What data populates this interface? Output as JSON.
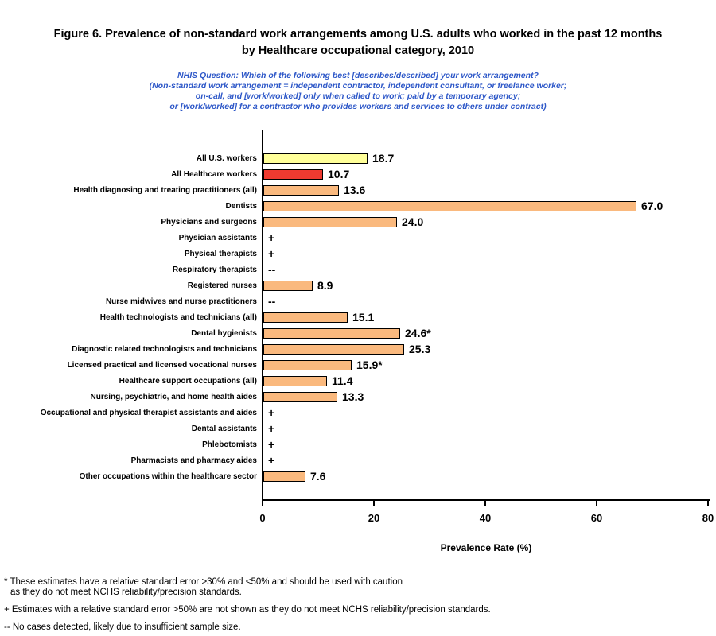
{
  "title": {
    "lines": [
      "Figure 6. Prevalence of non-standard work arrangements among U.S. adults who worked in the past 12 months",
      "by Healthcare occupational category, 2010"
    ]
  },
  "subtitle": {
    "color": "#2E58C8",
    "lines": [
      "NHIS Question: Which of the following best [describes/described] your work arrangement?",
      "(Non-standard work arrangement = independent contractor, independent consultant, or freelance worker;",
      "on-call, and [work/worked] only when called to work; paid by a temporary agency;",
      "or [work/worked] for a contractor who provides workers and services to others under contract)"
    ]
  },
  "chart_data": {
    "type": "bar",
    "orientation": "horizontal",
    "xlabel": "Prevalence Rate (%)",
    "xlim": [
      0,
      80.5
    ],
    "xticks": [
      0,
      20,
      40,
      60,
      80
    ],
    "grid": false,
    "default_bar_color": "#FAB97E",
    "bar_border_color": "#000000",
    "bars": [
      {
        "category": "All U.S. workers",
        "value": 18.7,
        "label": "18.7",
        "color": "#FFFF99"
      },
      {
        "category": "All Healthcare workers",
        "value": 10.7,
        "label": "10.7",
        "color": "#EE3A30"
      },
      {
        "category": "Health diagnosing and treating practitioners (all)",
        "value": 13.6,
        "label": "13.6"
      },
      {
        "category": "Dentists",
        "value": 67.0,
        "label": "67.0"
      },
      {
        "category": "Physicians and surgeons",
        "value": 24.0,
        "label": "24.0"
      },
      {
        "category": "Physician assistants",
        "value": null,
        "label": "+"
      },
      {
        "category": "Physical therapists",
        "value": null,
        "label": "+"
      },
      {
        "category": "Respiratory therapists",
        "value": null,
        "label": "--"
      },
      {
        "category": "Registered nurses",
        "value": 8.9,
        "label": "8.9"
      },
      {
        "category": "Nurse midwives and nurse practitioners",
        "value": null,
        "label": "--"
      },
      {
        "category": "Health technologists and technicians (all)",
        "value": 15.1,
        "label": "15.1"
      },
      {
        "category": "Dental hygienists",
        "value": 24.6,
        "label": "24.6*"
      },
      {
        "category": "Diagnostic related technologists and technicians",
        "value": 25.3,
        "label": "25.3"
      },
      {
        "category": "Licensed practical and licensed vocational nurses",
        "value": 15.9,
        "label": "15.9*"
      },
      {
        "category": "Healthcare support occupations (all)",
        "value": 11.4,
        "label": "11.4"
      },
      {
        "category": "Nursing, psychiatric, and home health aides",
        "value": 13.3,
        "label": "13.3"
      },
      {
        "category": "Occupational and physical therapist assistants and aides",
        "value": null,
        "label": "+"
      },
      {
        "category": "Dental assistants",
        "value": null,
        "label": "+"
      },
      {
        "category": "Phlebotomists",
        "value": null,
        "label": "+"
      },
      {
        "category": "Pharmacists and pharmacy aides",
        "value": null,
        "label": "+"
      },
      {
        "category": "Other occupations within the healthcare sector",
        "value": 7.6,
        "label": "7.6"
      }
    ]
  },
  "footnotes": [
    {
      "lines": [
        "* These estimates have a relative standard error >30% and <50% and should be used with caution",
        "as they do not meet NCHS reliability/precision standards."
      ]
    },
    {
      "lines": [
        "+ Estimates with a relative standard error >50% are not shown as they do not meet NCHS reliability/precision standards."
      ]
    },
    {
      "lines": [
        "-- No cases detected, likely due to insufficient sample size."
      ]
    }
  ]
}
